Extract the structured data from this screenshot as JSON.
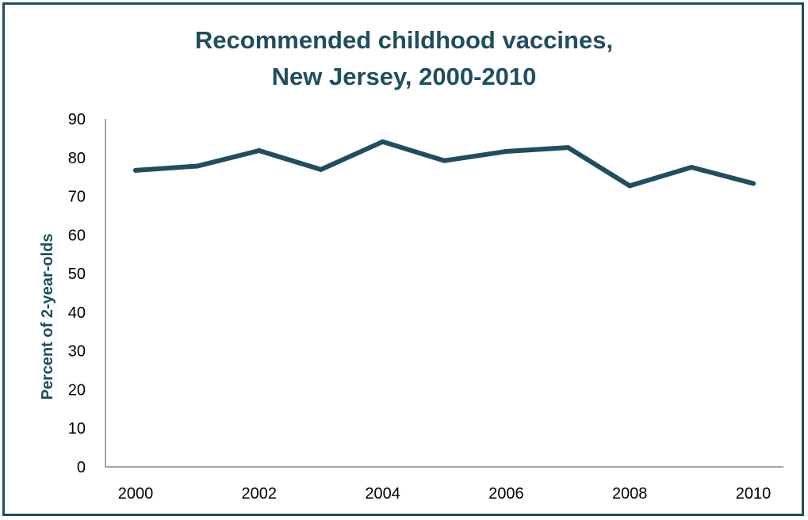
{
  "chart_data": {
    "type": "line",
    "title_line1": "Recommended childhood vaccines,",
    "title_line2": "New Jersey, 2000-2010",
    "xlabel": "",
    "ylabel": "Percent of 2-year-olds",
    "x": [
      2000,
      2001,
      2002,
      2003,
      2004,
      2005,
      2006,
      2007,
      2008,
      2009,
      2010
    ],
    "series": [
      {
        "values": [
          76.7,
          77.8,
          81.8,
          76.9,
          84.1,
          79.2,
          81.6,
          82.6,
          72.7,
          77.5,
          73.3
        ]
      }
    ],
    "ylim": [
      0,
      90
    ],
    "yticks": [
      0,
      10,
      20,
      30,
      40,
      50,
      60,
      70,
      80,
      90
    ],
    "xticks": [
      2000,
      2002,
      2004,
      2006,
      2008,
      2010
    ],
    "grid": false,
    "legend": "none",
    "line_color": "#1f4e5f",
    "frame_color": "#1f4e5f",
    "title_color": "#1f4e5f"
  }
}
